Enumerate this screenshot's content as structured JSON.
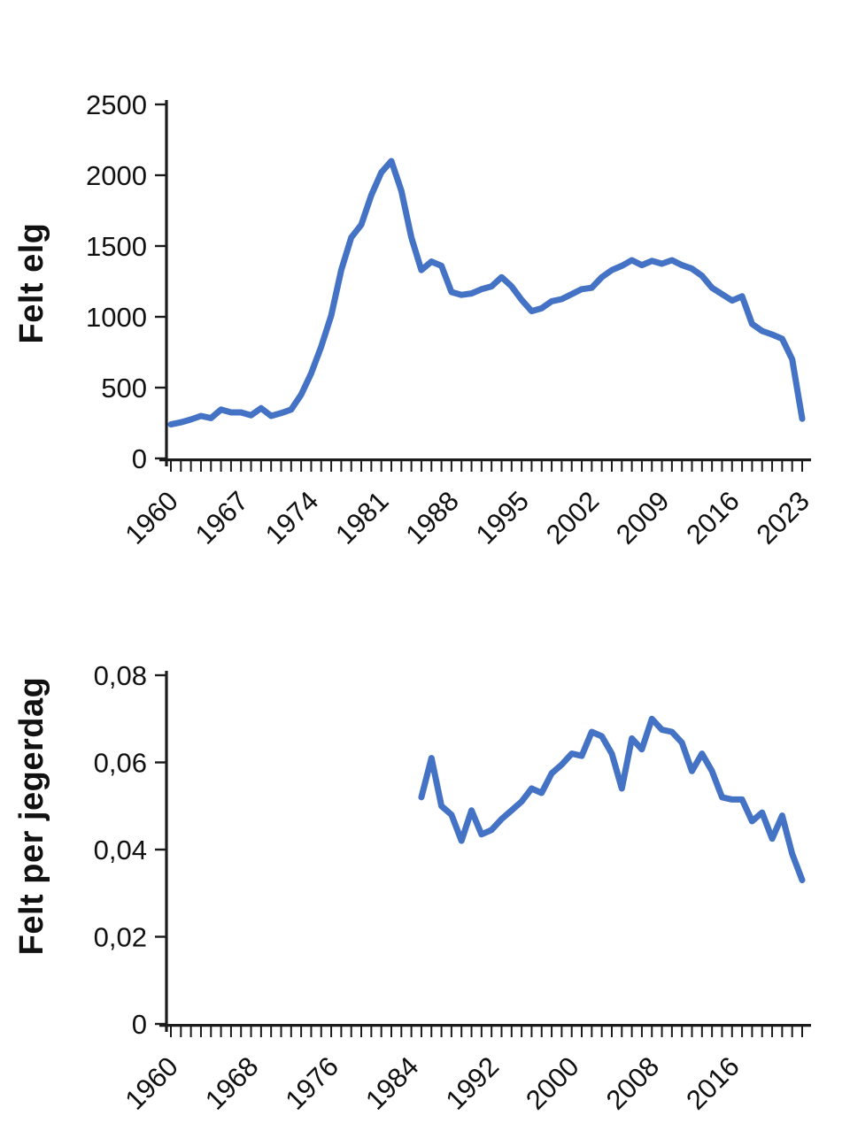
{
  "figure": {
    "background": "#ffffff",
    "line_color": "#4472C4",
    "axis_color": "#1b1b1b"
  },
  "chart_data": [
    {
      "type": "line",
      "title": "",
      "ylabel": "Felt elg",
      "xlabel": "",
      "ylim": [
        0,
        2500
      ],
      "xlim": [
        1960,
        2024
      ],
      "grid": false,
      "legend": "none",
      "line_color": "#4472C4",
      "y_tick_values": [
        0,
        500,
        1000,
        1500,
        2000,
        2500
      ],
      "y_tick_labels": [
        "0",
        "500",
        "1000",
        "1500",
        "2000",
        "2500"
      ],
      "x_label_years": [
        1960,
        1967,
        1974,
        1981,
        1988,
        1995,
        2002,
        2009,
        2016,
        2023
      ],
      "x_minor_tick_step": 1,
      "series": [
        {
          "name": "Felt elg",
          "x": [
            1960,
            1961,
            1962,
            1963,
            1964,
            1965,
            1966,
            1967,
            1968,
            1969,
            1970,
            1971,
            1972,
            1973,
            1974,
            1975,
            1976,
            1977,
            1978,
            1979,
            1980,
            1981,
            1982,
            1983,
            1984,
            1985,
            1986,
            1987,
            1988,
            1989,
            1990,
            1991,
            1992,
            1993,
            1994,
            1995,
            1996,
            1997,
            1998,
            1999,
            2000,
            2001,
            2002,
            2003,
            2004,
            2005,
            2006,
            2007,
            2008,
            2009,
            2010,
            2011,
            2012,
            2013,
            2014,
            2015,
            2016,
            2017,
            2018,
            2019,
            2020,
            2021,
            2022,
            2023
          ],
          "values": [
            240,
            255,
            275,
            300,
            285,
            345,
            325,
            325,
            305,
            355,
            300,
            320,
            345,
            450,
            600,
            790,
            1010,
            1330,
            1560,
            1650,
            1860,
            2020,
            2100,
            1890,
            1560,
            1330,
            1390,
            1360,
            1175,
            1155,
            1165,
            1195,
            1215,
            1280,
            1215,
            1120,
            1040,
            1060,
            1110,
            1125,
            1160,
            1195,
            1205,
            1280,
            1330,
            1360,
            1400,
            1365,
            1395,
            1375,
            1400,
            1365,
            1340,
            1290,
            1205,
            1160,
            1115,
            1145,
            950,
            900,
            875,
            845,
            700,
            280
          ]
        }
      ]
    },
    {
      "type": "line",
      "title": "",
      "ylabel": "Felt per jegerdag",
      "xlabel": "",
      "ylim": [
        0,
        0.08
      ],
      "xlim": [
        1960,
        2024
      ],
      "grid": false,
      "legend": "none",
      "line_color": "#4472C4",
      "y_tick_values": [
        0,
        0.02,
        0.04,
        0.06,
        0.08
      ],
      "y_tick_labels": [
        "0",
        "0,02",
        "0,04",
        "0,06",
        "0,08"
      ],
      "x_label_years": [
        1960,
        1968,
        1976,
        1984,
        1992,
        2000,
        2008,
        2016
      ],
      "x_minor_tick_step": 1,
      "series": [
        {
          "name": "Felt per jegerdag",
          "x": [
            1985,
            1986,
            1987,
            1988,
            1989,
            1990,
            1991,
            1992,
            1993,
            1994,
            1995,
            1996,
            1997,
            1998,
            1999,
            2000,
            2001,
            2002,
            2003,
            2004,
            2005,
            2006,
            2007,
            2008,
            2009,
            2010,
            2011,
            2012,
            2013,
            2014,
            2015,
            2016,
            2017,
            2018,
            2019,
            2020,
            2021,
            2022,
            2023
          ],
          "values": [
            0.052,
            0.061,
            0.05,
            0.048,
            0.042,
            0.049,
            0.0435,
            0.0445,
            0.047,
            0.049,
            0.051,
            0.054,
            0.053,
            0.0575,
            0.0595,
            0.062,
            0.0615,
            0.067,
            0.066,
            0.062,
            0.054,
            0.0655,
            0.063,
            0.07,
            0.0675,
            0.067,
            0.0645,
            0.058,
            0.062,
            0.058,
            0.052,
            0.0515,
            0.0515,
            0.0465,
            0.0485,
            0.0425,
            0.0478,
            0.039,
            0.033
          ]
        }
      ]
    }
  ]
}
